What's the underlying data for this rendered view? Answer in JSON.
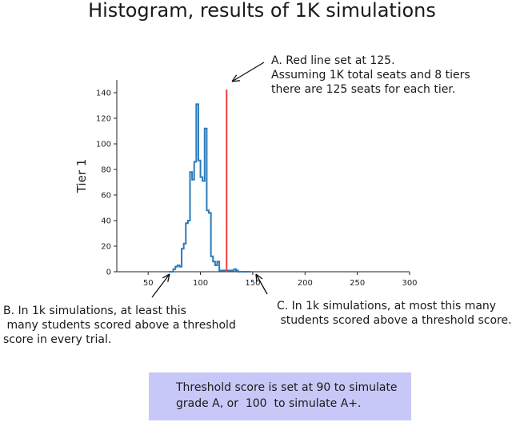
{
  "title": "Histogram, results of 1K simulations",
  "annotations": {
    "a": "A. Red line set at 125.\nAssuming 1K total seats and 8 tiers\nthere are 125 seats for each tier.",
    "b": "B. In 1k simulations, at least this\n many students scored above a threshold\nscore in every trial.",
    "c": "C. In 1k simulations, at most this many\n students scored above a threshold score."
  },
  "note": "Threshold score is set at 90 to simulate\ngrade A, or  100  to simulate A+.",
  "colors": {
    "histogram": "#2b7bba",
    "threshold_line": "#f04040",
    "note_background": "#c8c8f8"
  },
  "chart_data": {
    "type": "histogram",
    "title": "",
    "xlabel": "",
    "ylabel": "Tier 1",
    "xlim": [
      20,
      300
    ],
    "ylim": [
      0,
      150
    ],
    "xticks": [
      50,
      100,
      150,
      200,
      250,
      300
    ],
    "yticks": [
      0,
      20,
      40,
      60,
      80,
      100,
      120,
      140
    ],
    "grid": false,
    "bin_edges": [
      70,
      72,
      74,
      76,
      78,
      80,
      82,
      84,
      86,
      88,
      90,
      92,
      94,
      96,
      98,
      100,
      102,
      104,
      106,
      108,
      110,
      112,
      114,
      116,
      118,
      120,
      122,
      124,
      126,
      128,
      130,
      132,
      134,
      136,
      138,
      140,
      142,
      144,
      146,
      148
    ],
    "counts": [
      0,
      0,
      2,
      4,
      5,
      4,
      18,
      22,
      38,
      40,
      78,
      72,
      86,
      131,
      87,
      74,
      71,
      112,
      48,
      46,
      12,
      8,
      5,
      8,
      1,
      1,
      1,
      1,
      1,
      1,
      1,
      2,
      1,
      0,
      0,
      0,
      0,
      0,
      0
    ],
    "threshold": {
      "value": 125,
      "label": "Red line set at 125."
    }
  }
}
